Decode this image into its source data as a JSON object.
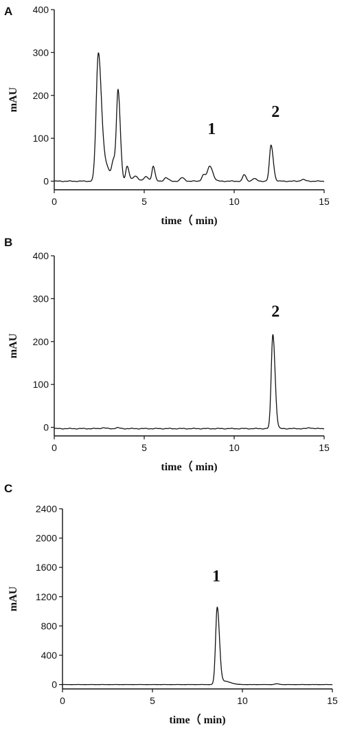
{
  "chart_data": [
    {
      "type": "line",
      "panel": "A",
      "xlabel": "time（ min)",
      "ylabel": "mAU",
      "xlim": [
        0,
        15
      ],
      "ylim": [
        -20,
        400
      ],
      "x_ticks": [
        0,
        5,
        10,
        15
      ],
      "y_ticks": [
        0,
        100,
        200,
        300,
        400
      ],
      "baseline": 0,
      "peaks": [
        {
          "x": 2.45,
          "y": 293,
          "w": 0.12
        },
        {
          "x": 2.8,
          "y": 40,
          "w": 0.18
        },
        {
          "x": 3.3,
          "y": 45,
          "w": 0.1
        },
        {
          "x": 3.55,
          "y": 205,
          "w": 0.09
        },
        {
          "x": 4.05,
          "y": 35,
          "w": 0.08
        },
        {
          "x": 4.5,
          "y": 12,
          "w": 0.12
        },
        {
          "x": 5.1,
          "y": 10,
          "w": 0.12
        },
        {
          "x": 5.5,
          "y": 35,
          "w": 0.07
        },
        {
          "x": 6.2,
          "y": 8,
          "w": 0.1
        },
        {
          "x": 7.1,
          "y": 8,
          "w": 0.1
        },
        {
          "x": 8.3,
          "y": 15,
          "w": 0.1
        },
        {
          "x": 8.65,
          "y": 35,
          "w": 0.12
        },
        {
          "x": 10.55,
          "y": 15,
          "w": 0.08
        },
        {
          "x": 11.1,
          "y": 6,
          "w": 0.1
        },
        {
          "x": 12.05,
          "y": 84,
          "w": 0.09
        },
        {
          "x": 13.8,
          "y": 4,
          "w": 0.1
        }
      ],
      "annotations": [
        {
          "text": "1",
          "x": 8.75,
          "y": 110
        },
        {
          "text": "2",
          "x": 12.3,
          "y": 150
        }
      ]
    },
    {
      "type": "line",
      "panel": "B",
      "xlabel": "time（ min)",
      "ylabel": "mAU",
      "xlim": [
        0,
        15
      ],
      "ylim": [
        -20,
        400
      ],
      "x_ticks": [
        0,
        5,
        10,
        15
      ],
      "y_ticks": [
        0,
        100,
        200,
        300,
        400
      ],
      "baseline": -3,
      "peaks": [
        {
          "x": 2.7,
          "y": 2,
          "w": 0.1
        },
        {
          "x": 3.5,
          "y": 2,
          "w": 0.1
        },
        {
          "x": 12.15,
          "y": 220,
          "w": 0.09
        },
        {
          "x": 14.2,
          "y": 2,
          "w": 0.1
        }
      ],
      "annotations": [
        {
          "text": "2",
          "x": 12.3,
          "y": 258
        }
      ]
    },
    {
      "type": "line",
      "panel": "C",
      "xlabel": "time（ min)",
      "ylabel": "mAU",
      "xlim": [
        0,
        15
      ],
      "ylim": [
        -60,
        2400
      ],
      "x_ticks": [
        0,
        5,
        10,
        15
      ],
      "y_ticks": [
        0,
        400,
        800,
        1200,
        1600,
        2000,
        2400
      ],
      "baseline": 0,
      "peaks": [
        {
          "x": 8.6,
          "y": 1045,
          "w": 0.09
        },
        {
          "x": 9.0,
          "y": 45,
          "w": 0.25
        },
        {
          "x": 11.9,
          "y": 10,
          "w": 0.1
        }
      ],
      "annotations": [
        {
          "text": "1",
          "x": 8.55,
          "y": 1410
        }
      ]
    }
  ]
}
